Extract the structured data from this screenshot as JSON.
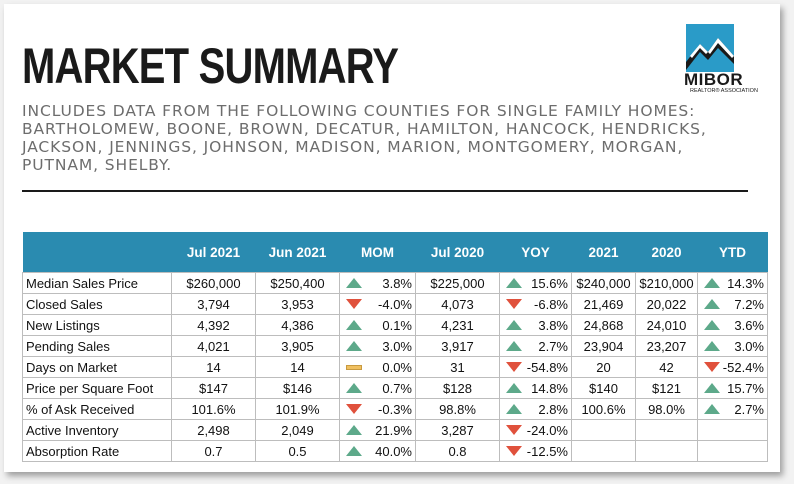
{
  "title": "MARKET SUMMARY",
  "subtitle": "INCLUDES DATA FROM THE FOLLOWING COUNTIES FOR SINGLE FAMILY HOMES: BARTHOLOMEW, BOONE, BROWN, DECATUR, HAMILTON, HANCOCK, HENDRICKS, JACKSON, JENNINGS, JOHNSON, MADISON, MARION, MONTGOMERY, MORGAN, PUTNAM, SHELBY.",
  "logo": {
    "name": "MIBOR",
    "tagline": "REALTOR® ASSOCIATION",
    "icon": "mountain-logo-icon"
  },
  "colors": {
    "header": "#2a8bb0",
    "up": "#5da98a",
    "down": "#e0513c",
    "flat": "#f0c060"
  },
  "columns": [
    "",
    "Jul 2021",
    "Jun 2021",
    "MOM",
    "Jul 2020",
    "YOY",
    "2021",
    "2020",
    "YTD"
  ],
  "rows": [
    {
      "label": "Median Sales Price",
      "jul2021": "$260,000",
      "jun2021": "$250,400",
      "mom": "3.8%",
      "mom_dir": "up",
      "jul2020": "$225,000",
      "yoy": "15.6%",
      "yoy_dir": "up",
      "y2021": "$240,000",
      "y2020": "$210,000",
      "ytd": "14.3%",
      "ytd_dir": "up"
    },
    {
      "label": "Closed Sales",
      "jul2021": "3,794",
      "jun2021": "3,953",
      "mom": "-4.0%",
      "mom_dir": "down",
      "jul2020": "4,073",
      "yoy": "-6.8%",
      "yoy_dir": "down",
      "y2021": "21,469",
      "y2020": "20,022",
      "ytd": "7.2%",
      "ytd_dir": "up"
    },
    {
      "label": "New Listings",
      "jul2021": "4,392",
      "jun2021": "4,386",
      "mom": "0.1%",
      "mom_dir": "up",
      "jul2020": "4,231",
      "yoy": "3.8%",
      "yoy_dir": "up",
      "y2021": "24,868",
      "y2020": "24,010",
      "ytd": "3.6%",
      "ytd_dir": "up"
    },
    {
      "label": "Pending Sales",
      "jul2021": "4,021",
      "jun2021": "3,905",
      "mom": "3.0%",
      "mom_dir": "up",
      "jul2020": "3,917",
      "yoy": "2.7%",
      "yoy_dir": "up",
      "y2021": "23,904",
      "y2020": "23,207",
      "ytd": "3.0%",
      "ytd_dir": "up"
    },
    {
      "label": "Days on Market",
      "jul2021": "14",
      "jun2021": "14",
      "mom": "0.0%",
      "mom_dir": "flat",
      "jul2020": "31",
      "yoy": "-54.8%",
      "yoy_dir": "down",
      "y2021": "20",
      "y2020": "42",
      "ytd": "-52.4%",
      "ytd_dir": "down"
    },
    {
      "label": "Price per Square Foot",
      "jul2021": "$147",
      "jun2021": "$146",
      "mom": "0.7%",
      "mom_dir": "up",
      "jul2020": "$128",
      "yoy": "14.8%",
      "yoy_dir": "up",
      "y2021": "$140",
      "y2020": "$121",
      "ytd": "15.7%",
      "ytd_dir": "up"
    },
    {
      "label": "% of Ask Received",
      "jul2021": "101.6%",
      "jun2021": "101.9%",
      "mom": "-0.3%",
      "mom_dir": "down",
      "jul2020": "98.8%",
      "yoy": "2.8%",
      "yoy_dir": "up",
      "y2021": "100.6%",
      "y2020": "98.0%",
      "ytd": "2.7%",
      "ytd_dir": "up"
    },
    {
      "label": "Active Inventory",
      "jul2021": "2,498",
      "jun2021": "2,049",
      "mom": "21.9%",
      "mom_dir": "up",
      "jul2020": "3,287",
      "yoy": "-24.0%",
      "yoy_dir": "down",
      "y2021": "",
      "y2020": "",
      "ytd": "",
      "ytd_dir": ""
    },
    {
      "label": "Absorption Rate",
      "jul2021": "0.7",
      "jun2021": "0.5",
      "mom": "40.0%",
      "mom_dir": "up",
      "jul2020": "0.8",
      "yoy": "-12.5%",
      "yoy_dir": "down",
      "y2021": "",
      "y2020": "",
      "ytd": "",
      "ytd_dir": ""
    }
  ]
}
